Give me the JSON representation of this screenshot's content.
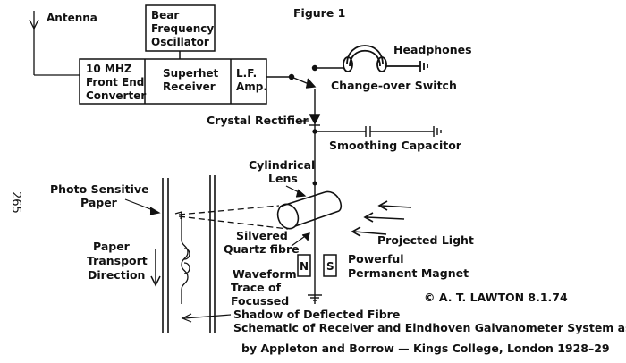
{
  "figure_title": "Figure 1",
  "page_number": "265",
  "blocks": {
    "oscillator": [
      "Bear",
      "Frequency",
      "Oscillator"
    ],
    "front_end": [
      "10 MHZ",
      "Front End",
      "Converter"
    ],
    "receiver": [
      "Superhet",
      "Receiver"
    ],
    "lf_amp": [
      "L.F.",
      "Amp."
    ]
  },
  "labels": {
    "antenna": "Antenna",
    "headphones": "Headphones",
    "change_over_switch": "Change-over Switch",
    "crystal_rectifier": "Crystal Rectifier",
    "smoothing_capacitor": "Smoothing Capacitor",
    "cylindrical_lens": [
      "Cylindrical",
      "Lens"
    ],
    "photo_sensitive_paper": [
      "Photo Sensitive",
      "Paper"
    ],
    "silvered_quartz_fibre": [
      "Silvered",
      "Quartz fibre"
    ],
    "projected_light": "Projected Light",
    "paper_transport_direction": [
      "Paper",
      "Transport",
      "Direction"
    ],
    "waveform_trace": [
      "Waveform",
      "Trace of",
      "Focussed"
    ],
    "magnet_n": "N",
    "magnet_s": "S",
    "powerful_permanent_magnet": [
      "Powerful",
      "Permanent Magnet"
    ],
    "shadow_of_deflected_fibre": "Shadow of Deflected Fibre"
  },
  "copyright": "© A. T. LAWTON 8.1.74",
  "caption": [
    "Schematic of Receiver and Eindhoven Galvanometer System as used",
    "by Appleton and Borrow — Kings College, London 1928–29"
  ]
}
